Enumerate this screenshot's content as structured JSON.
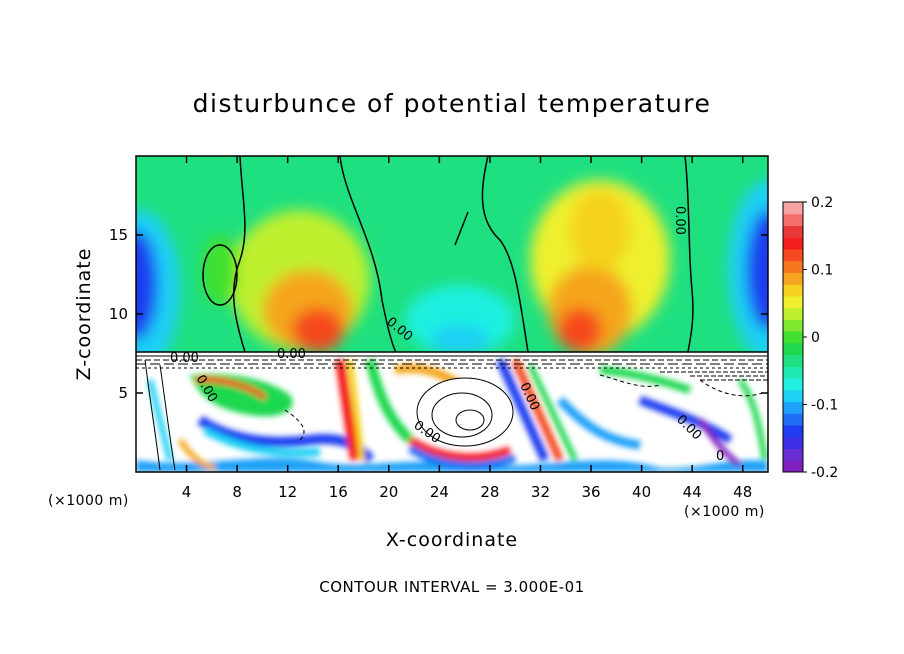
{
  "chart_data": {
    "type": "heatmap",
    "title": "disturbunce of potential temperature",
    "xlabel": "X-coordinate",
    "ylabel": "Z-coordinate",
    "x_unit": "(×1000 m)",
    "y_unit": "(×1000 m)",
    "xlim": [
      0,
      50
    ],
    "ylim": [
      0,
      20
    ],
    "x_ticks": [
      4,
      8,
      12,
      16,
      20,
      24,
      28,
      32,
      36,
      40,
      44,
      48
    ],
    "y_ticks": [
      5,
      10,
      15
    ],
    "colorbar": {
      "range": [
        -0.2,
        0.2
      ],
      "tick_values": [
        -0.2,
        -0.1,
        0,
        0.1,
        0.2
      ],
      "tick_labels": [
        "-0.2",
        "-0.1",
        "0",
        "0.1",
        "0.2"
      ],
      "colors": [
        "#7f1fbf",
        "#6a2fd4",
        "#3c2fe6",
        "#1f3cf0",
        "#1f6ef5",
        "#1fa0f8",
        "#1fd0f5",
        "#1ff0e0",
        "#1fe8b0",
        "#1fe080",
        "#1fd850",
        "#3fe02f",
        "#7fe82f",
        "#bff02f",
        "#eef02f",
        "#f5d21f",
        "#f5a51f",
        "#f5781f",
        "#f54a1f",
        "#f51f1f",
        "#e83a3a",
        "#f56f6f",
        "#f5a3a3"
      ]
    },
    "contour_interval": "3.000E-01",
    "contour_labels": [
      "0.00",
      "0.00",
      "0.00",
      "0.00",
      "0.00",
      "0.00",
      "0.00",
      "0.00",
      "0"
    ],
    "grid": false
  },
  "footer_text": "CONTOUR INTERVAL = 3.000E-01"
}
